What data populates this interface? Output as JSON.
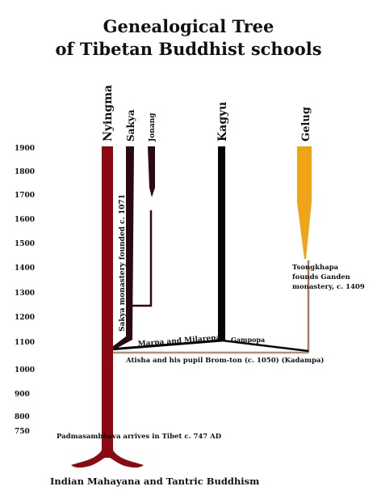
{
  "title": {
    "line1": "Genealogical Tree",
    "line2": "of Tibetan Buddhist schools"
  },
  "year_axis": {
    "ticks": [
      "1900",
      "1800",
      "1700",
      "1600",
      "1500",
      "1400",
      "1300",
      "1200",
      "1100",
      "1000",
      "900",
      "800",
      "750"
    ]
  },
  "schools": [
    {
      "id": "nyingma",
      "label": "Nyingma",
      "color": "#8b0a12"
    },
    {
      "id": "sakya",
      "label": "Sakya",
      "color": "#2a0a10"
    },
    {
      "id": "jonang",
      "label": "Jonang",
      "color": "#2a0a10"
    },
    {
      "id": "kagyu",
      "label": "Kagyu",
      "color": "#050505"
    },
    {
      "id": "gelug",
      "label": "Gelug",
      "color": "#f0a418"
    }
  ],
  "annotations": {
    "sakya_founding": "Sakya monastery founded c. 1071",
    "marpa_milarepa": "Marpa and Milarepa",
    "gampopa": "Gampopa",
    "atisha": "Atisha and his pupil Brom-ton (c. 1050) (Kadampa)",
    "tsongkhapa": [
      "Tsongkhapa",
      "founds Ganden",
      "monastery, c. 1409"
    ],
    "padmasambhava": "Padmasambhava arrives in Tibet c. 747 AD",
    "root": "Indian Mahayana and Tantric Buddhism"
  },
  "colors": {
    "kadampa_line": "#c08a6a",
    "gelug_stem": "#b07a60"
  }
}
